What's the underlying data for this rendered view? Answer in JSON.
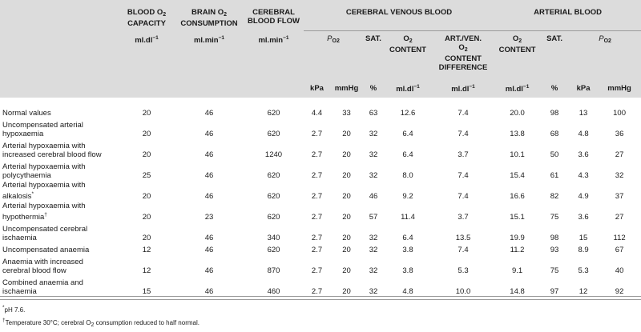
{
  "headers": {
    "blood_o2_capacity": "BLOOD O2 CAPACITY",
    "brain_o2_consumption": "BRAIN O2 CONSUMPTION",
    "cerebral_blood_flow": "CEREBRAL BLOOD FLOW",
    "cerebral_venous_blood": "CEREBRAL VENOUS BLOOD",
    "arterial_blood": "ARTERIAL BLOOD",
    "po2": "PO2",
    "sat": "SAT.",
    "o2_content": "O2 CONTENT",
    "art_ven_diff": "ART./VEN. O2 CONTENT DIFFERENCE"
  },
  "units_mid": {
    "capacity": "ml.dl−1",
    "consumption": "ml.min−1",
    "flow": "ml.min−1"
  },
  "units_row": [
    "kPa",
    "mmHg",
    "%",
    "ml.dl−1",
    "ml.dl−1",
    "ml.dl−1",
    "%",
    "kPa",
    "mmHg"
  ],
  "rows": [
    {
      "label": [
        "Normal values"
      ],
      "values": [
        "20",
        "46",
        "620",
        "4.4",
        "33",
        "63",
        "12.6",
        "7.4",
        "20.0",
        "98",
        "13",
        "100"
      ]
    },
    {
      "label": [
        "Uncompensated arterial",
        "hypoxaemia"
      ],
      "values": [
        "20",
        "46",
        "620",
        "2.7",
        "20",
        "32",
        "6.4",
        "7.4",
        "13.8",
        "68",
        "4.8",
        "36"
      ]
    },
    {
      "label": [
        "Arterial hypoxaemia with",
        "increased cerebral blood flow"
      ],
      "values": [
        "20",
        "46",
        "1240",
        "2.7",
        "20",
        "32",
        "6.4",
        "3.7",
        "10.1",
        "50",
        "3.6",
        "27"
      ]
    },
    {
      "label": [
        "Arterial hypoxaemia with",
        "polycythaemia"
      ],
      "values": [
        "25",
        "46",
        "620",
        "2.7",
        "20",
        "32",
        "8.0",
        "7.4",
        "15.4",
        "61",
        "4.3",
        "32"
      ]
    },
    {
      "label": [
        "Arterial hypoxaemia with",
        "alkalosis"
      ],
      "mark": "*",
      "values": [
        "20",
        "46",
        "620",
        "2.7",
        "20",
        "46",
        "9.2",
        "7.4",
        "16.6",
        "82",
        "4.9",
        "37"
      ]
    },
    {
      "label": [
        "Arterial hypoxaemia with",
        "hypothermia"
      ],
      "mark": "†",
      "values": [
        "20",
        "23",
        "620",
        "2.7",
        "20",
        "57",
        "11.4",
        "3.7",
        "15.1",
        "75",
        "3.6",
        "27"
      ]
    },
    {
      "label": [
        "Uncompensated cerebral",
        "ischaemia"
      ],
      "values": [
        "20",
        "46",
        "340",
        "2.7",
        "20",
        "32",
        "6.4",
        "13.5",
        "19.9",
        "98",
        "15",
        "112"
      ]
    },
    {
      "label": [
        "Uncompensated anaemia"
      ],
      "values": [
        "12",
        "46",
        "620",
        "2.7",
        "20",
        "32",
        "3.8",
        "7.4",
        "11.2",
        "93",
        "8.9",
        "67"
      ]
    },
    {
      "label": [
        "Anaemia with increased",
        "cerebral blood flow"
      ],
      "values": [
        "12",
        "46",
        "870",
        "2.7",
        "20",
        "32",
        "3.8",
        "5.3",
        "9.1",
        "75",
        "5.3",
        "40"
      ]
    },
    {
      "label": [
        "Combined anaemia and",
        "ischaemia"
      ],
      "values": [
        "15",
        "46",
        "460",
        "2.7",
        "20",
        "32",
        "4.8",
        "10.0",
        "14.8",
        "97",
        "12",
        "92"
      ]
    }
  ],
  "footnotes": {
    "n1_mark": "*",
    "n1_text": "pH 7.6.",
    "n2_mark": "†",
    "n2_text": "Temperature 30°C; cerebral O2 consumption reduced to half normal."
  }
}
